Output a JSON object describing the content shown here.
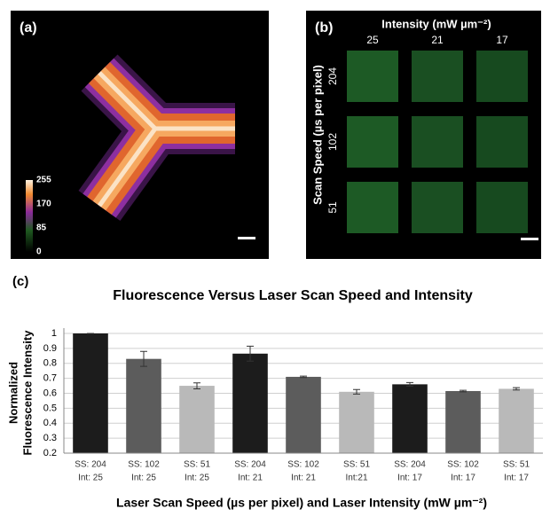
{
  "panel_a": {
    "label": "(a)",
    "colorbar_ticks": [
      0,
      85,
      170,
      255
    ]
  },
  "panel_b": {
    "label": "(b)",
    "title": "Intensity  (mW µm⁻²)",
    "columns": [
      25,
      21,
      17
    ],
    "rows": [
      204,
      102,
      51
    ],
    "y_label": "Scan Speed (µs per pixel)"
  },
  "chart_data": {
    "type": "bar",
    "panel_label": "(c)",
    "title": "Fluorescence Versus  Laser Scan Speed and Intensity",
    "y_label": [
      "Normalized",
      "Fluorescence Intensity"
    ],
    "x_label": "Laser Scan Speed (µs per pixel) and Laser Intensity (mW µm⁻²)",
    "categories": [
      [
        "SS: 204",
        "Int: 25"
      ],
      [
        "SS: 102",
        "Int: 25"
      ],
      [
        "SS: 51",
        "Int: 25"
      ],
      [
        "SS: 204",
        "Int: 21"
      ],
      [
        "SS: 102",
        "Int: 21"
      ],
      [
        "SS: 51",
        "Int:21"
      ],
      [
        "SS: 204",
        "Int: 17"
      ],
      [
        "SS: 102",
        "Int: 17"
      ],
      [
        "SS: 51",
        "Int: 17"
      ]
    ],
    "values": [
      1,
      0.83,
      0.65,
      0.865,
      0.71,
      0.61,
      0.66,
      0.615,
      0.63
    ],
    "errors": [
      0,
      0.05,
      0.02,
      0.05,
      0.005,
      0.015,
      0.012,
      0.005,
      0.008
    ],
    "colors": [
      "#1c1c1c",
      "#5c5c5c",
      "#b9b9b9",
      "#1c1c1c",
      "#5c5c5c",
      "#b9b9b9",
      "#1c1c1c",
      "#5c5c5c",
      "#b9b9b9"
    ],
    "ylim": [
      0.2,
      1
    ],
    "yticks": [
      0.2,
      0.3,
      0.4,
      0.5,
      0.6,
      0.7,
      0.8,
      0.9,
      1
    ],
    "grid": true
  }
}
